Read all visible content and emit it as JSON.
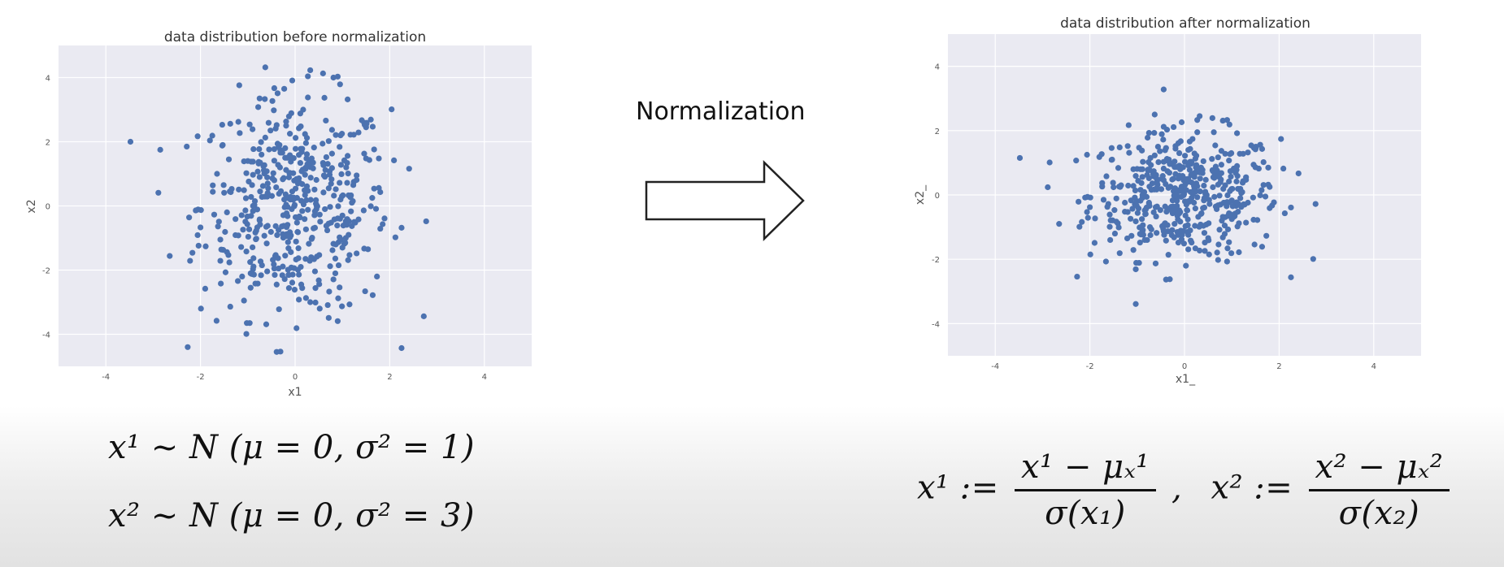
{
  "heading": "Normalization",
  "formulas": {
    "dist_1": "x¹  ~  N (μ = 0,  σ² = 1)",
    "dist_2": "x²  ~  N (μ = 0,  σ² = 3)",
    "norm_1_lhs": "x¹  :=",
    "norm_1_num": "x¹ −  μₓ¹",
    "norm_1_den": "σ(x₁)",
    "separator": ",",
    "norm_2_lhs": "x²  :=",
    "norm_2_num": "x² −  μₓ²",
    "norm_2_den": "σ(x₂)"
  },
  "colors": {
    "plot_bg": "#eaeaf2",
    "grid": "#ffffff",
    "points": "#4c72b0",
    "arrow_stroke": "#222222"
  },
  "chart_data": [
    {
      "type": "scatter",
      "title": "data distribution before normalization",
      "xlabel": "x1",
      "ylabel": "x2",
      "xlim": [
        -5,
        5
      ],
      "ylim": [
        -5,
        5
      ],
      "xticks": [
        -4,
        -2,
        0,
        2,
        4
      ],
      "yticks": [
        -4,
        -2,
        0,
        2,
        4
      ],
      "grid": true,
      "n_points": 500,
      "x_std": 1.0,
      "y_std": 1.73,
      "points": []
    },
    {
      "type": "scatter",
      "title": "data distribution after normalization",
      "xlabel": "x1_",
      "ylabel": "x2_",
      "xlim": [
        -5,
        5
      ],
      "ylim": [
        -5,
        5
      ],
      "xticks": [
        -4,
        -2,
        0,
        2,
        4
      ],
      "yticks": [
        -4,
        -2,
        0,
        2,
        4
      ],
      "grid": true,
      "n_points": 500,
      "x_std": 1.0,
      "y_std": 1.0,
      "points": []
    }
  ]
}
